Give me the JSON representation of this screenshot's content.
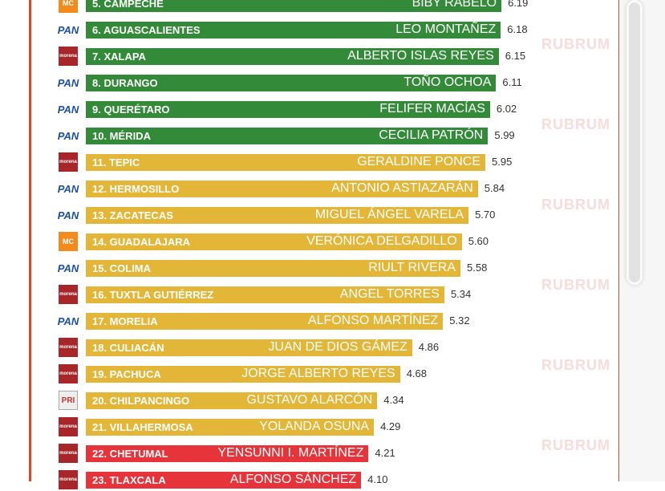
{
  "colors": {
    "green": "#338a38",
    "yellow": "#e3b638",
    "red": "#e7343a",
    "border": "#d9482b"
  },
  "watermark": "RUBRUM",
  "chart_data": {
    "type": "bar",
    "orientation": "horizontal",
    "title": "",
    "categories": [
      "5. CAMPECHE",
      "6. AGUASCALIENTES",
      "7. XALAPA",
      "8. DURANGO",
      "9. QUERÉTARO",
      "10. MÉRIDA",
      "11. TEPIC",
      "12. HERMOSILLO",
      "13. ZACATECAS",
      "14. GUADALAJARA",
      "15. COLIMA",
      "16. TUXTLA GUTIÉRREZ",
      "17. MORELIA",
      "18. CULIACÁN",
      "19. PACHUCA",
      "20. CHILPANCINGO",
      "21. VILLAHERMOSA",
      "22. CHETUMAL",
      "23. TLAXCALA"
    ],
    "candidates": [
      "BIBY RABELO",
      "LEO MONTAÑEZ",
      "ALBERTO ISLAS REYES",
      "TOÑO OCHOA",
      "FELIFER MACÍAS",
      "CECILIA PATRÓN",
      "GERALDINE PONCE",
      "ANTONIO ASTIAZARÁN",
      "MIGUEL ÁNGEL VARELA",
      "VERÓNICA DELGADILLO",
      "RIULT RIVERA",
      "ANGEL TORRES",
      "ALFONSO MARTÍNEZ",
      "JUAN DE DIOS GÁMEZ",
      "JORGE ALBERTO REYES",
      "GUSTAVO ALARCÓN",
      "YOLANDA OSUNA",
      "YENSUNNI I. MARTÍNEZ",
      "ALFONSO SÁNCHEZ"
    ],
    "values": [
      6.19,
      6.18,
      6.15,
      6.11,
      6.02,
      5.99,
      5.95,
      5.84,
      5.7,
      5.6,
      5.58,
      5.34,
      5.32,
      4.86,
      4.68,
      4.34,
      4.29,
      4.21,
      4.1
    ],
    "value_labels": [
      "6.19",
      "6.18",
      "6.15",
      "6.11",
      "6.02",
      "5.99",
      "5.95",
      "5.84",
      "5.70",
      "5.60",
      "5.58",
      "5.34",
      "5.32",
      "4.86",
      "4.68",
      "4.34",
      "4.29",
      "4.21",
      "4.10"
    ],
    "parties": [
      "mc",
      "pan",
      "morena",
      "pan",
      "pan",
      "pan",
      "morena",
      "pan",
      "pan",
      "mc",
      "pan",
      "morena",
      "pan",
      "morena",
      "morena",
      "pri",
      "morena",
      "morena",
      "morena"
    ],
    "party_labels": {
      "pan": "PAN",
      "morena": "morena",
      "mc": "MC",
      "pri": "PRI"
    },
    "tiers": [
      "green",
      "green",
      "green",
      "green",
      "green",
      "green",
      "yellow",
      "yellow",
      "yellow",
      "yellow",
      "yellow",
      "yellow",
      "yellow",
      "yellow",
      "yellow",
      "yellow",
      "yellow",
      "red",
      "red"
    ]
  }
}
